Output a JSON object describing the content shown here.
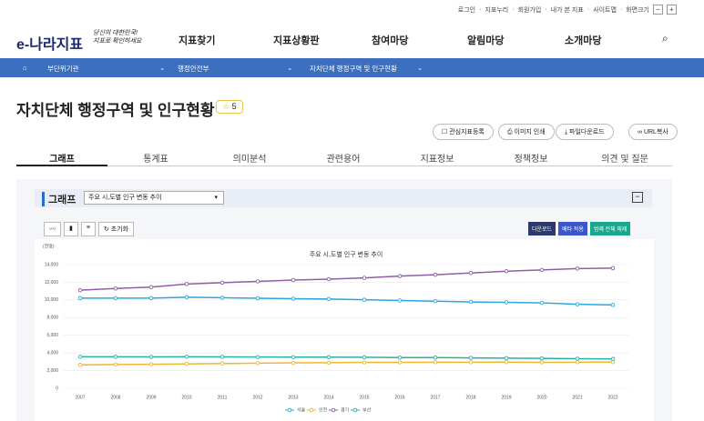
{
  "utility": {
    "links": [
      "로그인",
      "지표누리",
      "회원가입",
      "내가 본 지표",
      "사이트맵",
      "화면크기"
    ],
    "zoom_out": "−",
    "zoom_in": "+"
  },
  "header": {
    "logo": "e-나라지표",
    "slogan": [
      "당신의 대한민국!",
      "지표로 확인하세요"
    ],
    "nav": [
      "지표찾기",
      "지표상황판",
      "참여마당",
      "알림마당",
      "소개마당"
    ]
  },
  "breadcrumb": [
    "부단위기관",
    "행정안전부",
    "자치단체 행정구역 및 인구현황"
  ],
  "page": {
    "title": "자치단체 행정구역 및 인구현황",
    "stars": 5,
    "actions": [
      "관심지표등록",
      "이미지 인쇄",
      "파일다운로드",
      "URL복사"
    ],
    "tabs": [
      "그래프",
      "통계표",
      "의미분석",
      "관련용어",
      "지표정보",
      "정책정보",
      "의견 및 질문"
    ]
  },
  "graph_panel": {
    "heading": "그래프",
    "select": "주요 시,도별 인구 변동 추이",
    "reset": "초기화",
    "buttons": [
      "다운로드",
      "배타 적용",
      "범례 전체 해제"
    ]
  },
  "chart_data": {
    "type": "line",
    "title": "주요 시,도별 인구 변동 추이",
    "unit": "(천명)",
    "categories": [
      "2007",
      "2008",
      "2009",
      "2010",
      "2011",
      "2012",
      "2013",
      "2014",
      "2015",
      "2016",
      "2017",
      "2018",
      "2019",
      "2020",
      "2021",
      "2022"
    ],
    "ylim": [
      0,
      14000
    ],
    "yticks": [
      0,
      {
        "value": 2000,
        "label": "2,000"
      },
      {
        "value": 4000,
        "label": "4,000"
      },
      {
        "value": 6000,
        "label": "6,000"
      },
      {
        "value": 8000,
        "label": "8,000"
      },
      {
        "value": 10000,
        "label": "10,000"
      },
      {
        "value": 12000,
        "label": "12,000"
      },
      {
        "value": 14000,
        "label": "14,000"
      }
    ],
    "grid": true,
    "series": [
      {
        "name": "서울",
        "color": "#2aa7e1",
        "values": [
          10200,
          10200,
          10210,
          10310,
          10250,
          10190,
          10140,
          10100,
          10020,
          9930,
          9860,
          9770,
          9730,
          9670,
          9510,
          9430
        ]
      },
      {
        "name": "인천",
        "color": "#f2b630",
        "values": [
          2650,
          2690,
          2710,
          2760,
          2800,
          2840,
          2880,
          2900,
          2930,
          2940,
          2950,
          2950,
          2960,
          2940,
          2950,
          2970
        ]
      },
      {
        "name": "경기",
        "color": "#8f5ea6",
        "values": [
          11100,
          11300,
          11450,
          11800,
          11950,
          12100,
          12250,
          12350,
          12500,
          12700,
          12850,
          13050,
          13250,
          13400,
          13550,
          13600
        ]
      },
      {
        "name": "부산",
        "color": "#27b3a5",
        "values": [
          3570,
          3560,
          3550,
          3570,
          3550,
          3540,
          3530,
          3520,
          3510,
          3480,
          3470,
          3440,
          3410,
          3390,
          3350,
          3320
        ]
      }
    ]
  }
}
